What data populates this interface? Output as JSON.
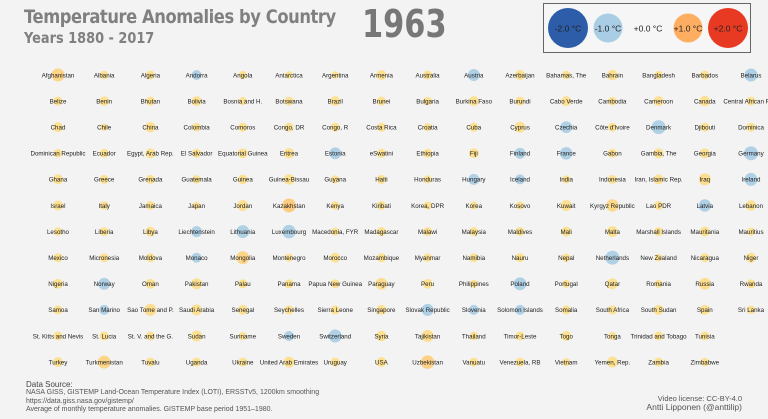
{
  "header": {
    "title": "Temperature Anomalies by Country",
    "subtitle": "Years 1880 - 2017",
    "year": "1963"
  },
  "legend": {
    "items": [
      {
        "label": "-2.0 °C",
        "value": -2.0
      },
      {
        "label": "-1.0 °C",
        "value": -1.0
      },
      {
        "label": "+0.0 °C",
        "value": 0.0
      },
      {
        "label": "+1.0 °C",
        "value": 1.0
      },
      {
        "label": "+2.0 °C",
        "value": 2.0
      }
    ]
  },
  "colors": {
    "cold_strong": "#2d5ca8",
    "cold_light": "#a9cde4",
    "neutral": "#ffffff",
    "warm_light": "#fee08b",
    "warm_mid": "#fdae61",
    "warm_strong": "#e83a22"
  },
  "footer": {
    "source_heading": "Data Source:",
    "source_lines": [
      "NASA GISS, GISTEMP Land-Ocean Temperature Index (LOTI), ERSSTv5, 1200km smoothing",
      "https://data.giss.nasa.gov/gistemp/",
      "Average of monthly temperature anomalies. GISTEMP base period 1951–1980."
    ],
    "license": "Video license: CC-BY-4.0",
    "author": "Antti Lipponen (@anttilip)"
  },
  "chart_data": {
    "type": "scatter",
    "title": "Temperature Anomalies by Country",
    "subtitle": "Years 1880 - 2017",
    "year": "1963",
    "unit": "°C",
    "value_range": [
      -2.0,
      2.0
    ],
    "rows": [
      [
        [
          "Afghanistan",
          0.6
        ],
        [
          "Albania",
          0.15
        ],
        [
          "Algeria",
          0.2
        ],
        [
          "Andorra",
          -0.3
        ],
        [
          "Angola",
          0.1
        ],
        [
          "Antarctica",
          0.05
        ],
        [
          "Argentina",
          0.05
        ],
        [
          "Armenia",
          0.3
        ],
        [
          "Australia",
          0.2
        ],
        [
          "Austria",
          -0.5
        ],
        [
          "Azerbaijan",
          0.3
        ],
        [
          "Bahamas, The",
          0.15
        ],
        [
          "Bahrain",
          0.35
        ],
        [
          "Bangladesh",
          0.1
        ],
        [
          "Barbados",
          0.2
        ],
        [
          "Belarus",
          -0.6
        ]
      ],
      [
        [
          "Belize",
          0.2
        ],
        [
          "Benin",
          0.25
        ],
        [
          "Bhutan",
          0.2
        ],
        [
          "Bolivia",
          0.3
        ],
        [
          "Bosnia and H.",
          0.1
        ],
        [
          "Botswana",
          0.2
        ],
        [
          "Brazil",
          0.3
        ],
        [
          "Brunei",
          0.2
        ],
        [
          "Bulgaria",
          0.15
        ],
        [
          "Burkina Faso",
          0.3
        ],
        [
          "Burundi",
          0.2
        ],
        [
          "Cabo Verde",
          0.3
        ],
        [
          "Cambodia",
          0.15
        ],
        [
          "Cameroon",
          0.3
        ],
        [
          "Canada",
          0.35
        ],
        [
          "Central African Rep.",
          0.2
        ]
      ],
      [
        [
          "Chad",
          0.3
        ],
        [
          "Chile",
          0.05
        ],
        [
          "China",
          0.35
        ],
        [
          "Colombia",
          0.15
        ],
        [
          "Comoros",
          0.2
        ],
        [
          "Congo, DR",
          0.2
        ],
        [
          "Congo, R",
          0.2
        ],
        [
          "Costa Rica",
          0.2
        ],
        [
          "Croatia",
          0.1
        ],
        [
          "Cuba",
          0.2
        ],
        [
          "Cyprus",
          0.4
        ],
        [
          "Czechia",
          -0.5
        ],
        [
          "Côte d'Ivoire",
          0.2
        ],
        [
          "Denmark",
          -0.7
        ],
        [
          "Djibouti",
          0.2
        ],
        [
          "Dominica",
          0.2
        ]
      ],
      [
        [
          "Dominican Republic",
          0.15
        ],
        [
          "Ecuador",
          0.2
        ],
        [
          "Egypt, Arab Rep.",
          0.3
        ],
        [
          "El Salvador",
          0.2
        ],
        [
          "Equatorial Guinea",
          0.3
        ],
        [
          "Eritrea",
          0.35
        ],
        [
          "Estonia",
          -0.5
        ],
        [
          "eSwatini",
          0.2
        ],
        [
          "Ethiopia",
          0.2
        ],
        [
          "Fiji",
          0.3
        ],
        [
          "Finland",
          -0.4
        ],
        [
          "France",
          -0.55
        ],
        [
          "Gabon",
          0.2
        ],
        [
          "Gambia, The",
          0.3
        ],
        [
          "Georgia",
          0.3
        ],
        [
          "Germany",
          -0.7
        ]
      ],
      [
        [
          "Ghana",
          0.3
        ],
        [
          "Greece",
          0.2
        ],
        [
          "Grenada",
          0.2
        ],
        [
          "Guatemala",
          0.15
        ],
        [
          "Guinea",
          0.25
        ],
        [
          "Guinea-Bissau",
          0.35
        ],
        [
          "Guyana",
          0.1
        ],
        [
          "Haiti",
          0.2
        ],
        [
          "Honduras",
          0.1
        ],
        [
          "Hungary",
          -0.4
        ],
        [
          "Iceland",
          -0.3
        ],
        [
          "India",
          0.1
        ],
        [
          "Indonesia",
          0.2
        ],
        [
          "Iran, Islamic Rep.",
          0.3
        ],
        [
          "Iraq",
          0.5
        ],
        [
          "Ireland",
          -0.6
        ]
      ],
      [
        [
          "Israel",
          0.3
        ],
        [
          "Italy",
          0.15
        ],
        [
          "Jamaica",
          0.2
        ],
        [
          "Japan",
          0.05
        ],
        [
          "Jordan",
          0.4
        ],
        [
          "Kazakhstan",
          0.7
        ],
        [
          "Kenya",
          0.15
        ],
        [
          "Kiribati",
          0.2
        ],
        [
          "Korea, DPR",
          0.1
        ],
        [
          "Korea",
          0.1
        ],
        [
          "Kosovo",
          0.1
        ],
        [
          "Kuwait",
          0.4
        ],
        [
          "Kyrgyz Republic",
          0.55
        ],
        [
          "Lao PDR",
          0.2
        ],
        [
          "Latvia",
          -0.55
        ],
        [
          "Lebanon",
          0.35
        ]
      ],
      [
        [
          "Lesotho",
          0.15
        ],
        [
          "Liberia",
          0.2
        ],
        [
          "Libya",
          0.3
        ],
        [
          "Liechtenstein",
          -0.4
        ],
        [
          "Lithuania",
          -0.6
        ],
        [
          "Luxembourg",
          -0.65
        ],
        [
          "Macedonia, FYR",
          0.1
        ],
        [
          "Madagascar",
          0.2
        ],
        [
          "Malawi",
          0.2
        ],
        [
          "Malaysia",
          0.2
        ],
        [
          "Maldives",
          0.2
        ],
        [
          "Mali",
          0.3
        ],
        [
          "Malta",
          0.4
        ],
        [
          "Marshall Islands",
          0.2
        ],
        [
          "Mauritania",
          0.3
        ],
        [
          "Mauritius",
          0.1
        ]
      ],
      [
        [
          "Mexico",
          0.2
        ],
        [
          "Micronesia",
          0.2
        ],
        [
          "Moldova",
          0.2
        ],
        [
          "Monaco",
          -0.3
        ],
        [
          "Mongolia",
          0.6
        ],
        [
          "Montenegro",
          0.1
        ],
        [
          "Morocco",
          0.3
        ],
        [
          "Mozambique",
          0.2
        ],
        [
          "Myanmar",
          0.15
        ],
        [
          "Namibia",
          0.2
        ],
        [
          "Nauru",
          0.2
        ],
        [
          "Nepal",
          0.15
        ],
        [
          "Netherlands",
          -0.7
        ],
        [
          "New Zealand",
          0.05
        ],
        [
          "Nicaragua",
          0.2
        ],
        [
          "Niger",
          0.3
        ]
      ],
      [
        [
          "Nigeria",
          0.3
        ],
        [
          "Norway",
          -0.5
        ],
        [
          "Oman",
          0.3
        ],
        [
          "Pakistan",
          0.4
        ],
        [
          "Palau",
          0.2
        ],
        [
          "Panama",
          0.2
        ],
        [
          "Papua New Guinea",
          0.2
        ],
        [
          "Paraguay",
          0.5
        ],
        [
          "Peru",
          0.3
        ],
        [
          "Philippines",
          0.1
        ],
        [
          "Poland",
          -0.6
        ],
        [
          "Portugal",
          0.1
        ],
        [
          "Qatar",
          0.4
        ],
        [
          "Romania",
          0.1
        ],
        [
          "Russia",
          0.5
        ],
        [
          "Rwanda",
          0.2
        ]
      ],
      [
        [
          "Samoa",
          0.2
        ],
        [
          "San Marino",
          -0.3
        ],
        [
          "Sao Tome and P.",
          0.5
        ],
        [
          "Saudi Arabia",
          0.4
        ],
        [
          "Senegal",
          0.3
        ],
        [
          "Seychelles",
          0.2
        ],
        [
          "Sierra Leone",
          0.2
        ],
        [
          "Singapore",
          0.3
        ],
        [
          "Slovak Republic",
          -0.5
        ],
        [
          "Slovenia",
          -0.3
        ],
        [
          "Solomon Islands",
          -0.3
        ],
        [
          "Somalia",
          0.2
        ],
        [
          "South Africa",
          0.2
        ],
        [
          "South Sudan",
          0.3
        ],
        [
          "Spain",
          0.3
        ],
        [
          "Sri Lanka",
          0.15
        ]
      ],
      [
        [
          "St. Kitts and Nevis",
          0.2
        ],
        [
          "St. Lucia",
          0.2
        ],
        [
          "St. V. and the G.",
          0.2
        ],
        [
          "Sudan",
          0.4
        ],
        [
          "Suriname",
          0.1
        ],
        [
          "Sweden",
          -0.3
        ],
        [
          "Switzerland",
          -0.6
        ],
        [
          "Syria",
          0.35
        ],
        [
          "Tajikistan",
          0.5
        ],
        [
          "Thailand",
          0.15
        ],
        [
          "Timor-Leste",
          0.2
        ],
        [
          "Togo",
          0.3
        ],
        [
          "Tonga",
          0.1
        ],
        [
          "Trinidad and Tobago",
          0.2
        ],
        [
          "Tunisia",
          0.2
        ]
      ],
      [
        [
          "Turkey",
          0.3
        ],
        [
          "Turkmenistan",
          0.6
        ],
        [
          "Tuvalu",
          0.2
        ],
        [
          "Uganda",
          0.2
        ],
        [
          "Ukraine",
          0.2
        ],
        [
          "United Arab Emirates",
          0.4
        ],
        [
          "Uruguay",
          0.2
        ],
        [
          "USA",
          0.3
        ],
        [
          "Uzbekistan",
          0.65
        ],
        [
          "Vanuatu",
          0.2
        ],
        [
          "Venezuela, RB",
          0.2
        ],
        [
          "Vietnam",
          0.1
        ],
        [
          "Yemen, Rep.",
          0.4
        ],
        [
          "Zambia",
          0.2
        ],
        [
          "Zimbabwe",
          0.15
        ]
      ]
    ]
  }
}
